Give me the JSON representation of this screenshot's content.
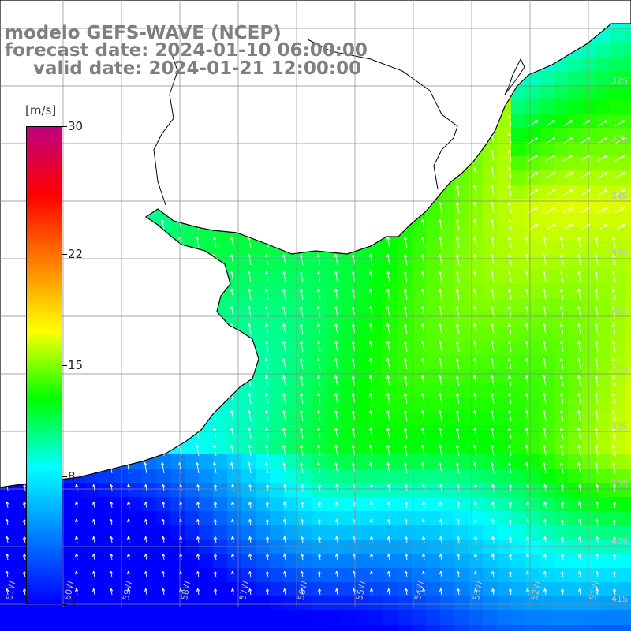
{
  "title": {
    "line1": "modelo GEFS-WAVE (NCEP)",
    "line2": "forecast date: 2024-01-10 06:00:00",
    "line3": "valid date: 2024-01-21 12:00:00"
  },
  "colorbar": {
    "unit": "[m/s]",
    "min": 0,
    "max": 30,
    "ticks": [
      "30",
      "22",
      "15",
      "8",
      "0"
    ],
    "tick_values": [
      30,
      22,
      15,
      8,
      0
    ],
    "colors": [
      "#0000ff",
      "#0080ff",
      "#00ffff",
      "#00ff00",
      "#ffff00",
      "#ff8000",
      "#ff0000",
      "#c00080"
    ]
  },
  "map": {
    "lat_labels": [
      "32S",
      "33S",
      "34S",
      "35S",
      "36S",
      "37S",
      "38S",
      "39S",
      "40S",
      "41S"
    ],
    "lon_labels": [
      "61W",
      "60W",
      "59W",
      "58W",
      "57W",
      "56W",
      "55W",
      "54W",
      "53W",
      "52W",
      "51W"
    ],
    "land_color": "#ffffff",
    "coast_color": "#000000",
    "grid_color": "#888888",
    "arrow_color": "#ffffff"
  }
}
